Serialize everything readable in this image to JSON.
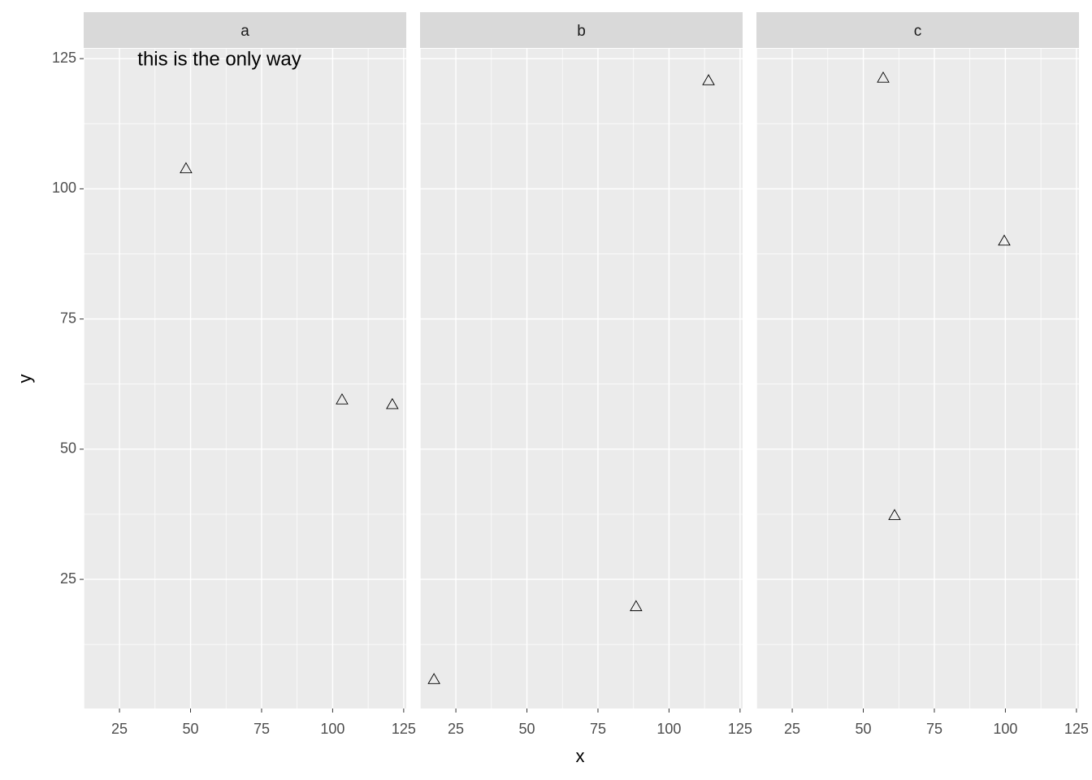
{
  "chart_data": {
    "type": "scatter",
    "x_label": "x",
    "y_label": "y",
    "annotation": "this is the only way",
    "xlim": [
      12.4,
      125.9
    ],
    "ylim": [
      0.2,
      126.9
    ],
    "xticks": [
      25,
      50,
      75,
      100,
      125
    ],
    "yticks": [
      25,
      50,
      75,
      100,
      125
    ],
    "grid": true,
    "color": "#000000",
    "facets": [
      {
        "title": "a",
        "x": [
          48.4,
          103.3,
          121.0
        ],
        "y": [
          103.9,
          59.5,
          58.6
        ]
      },
      {
        "title": "b",
        "x": [
          17.3,
          88.4,
          113.9
        ],
        "y": [
          5.8,
          19.8,
          120.8
        ]
      },
      {
        "title": "c",
        "x": [
          57.0,
          99.6,
          61.0
        ],
        "y": [
          121.3,
          90.0,
          37.3
        ]
      }
    ]
  }
}
